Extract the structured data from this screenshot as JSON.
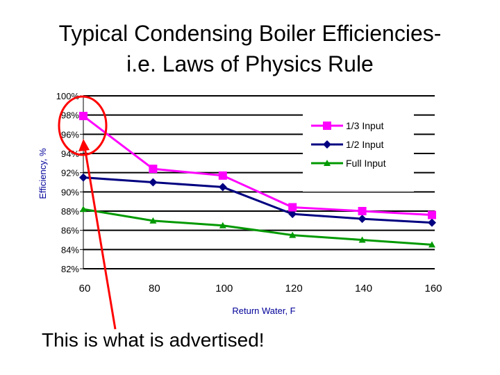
{
  "slide": {
    "title_line1": "Typical Condensing Boiler Efficiencies-",
    "title_line2": "i.e. Laws of Physics Rule",
    "callout": "This is what is advertised!"
  },
  "chart_data": {
    "type": "line",
    "xlabel": "Return Water, F",
    "ylabel": "Efficiency, %",
    "x": [
      60,
      80,
      100,
      120,
      140,
      160
    ],
    "x_tick_labels": [
      "60",
      "80",
      "100",
      "120",
      "140",
      "160"
    ],
    "y_tick_labels": [
      "100%",
      "98%",
      "96%",
      "94%",
      "92%",
      "90%",
      "88%",
      "86%",
      "84%",
      "82%"
    ],
    "ylim": [
      82,
      100
    ],
    "grid": true,
    "legend_position": "top-right",
    "series": [
      {
        "name": "1/3 Input",
        "marker": "square",
        "color": "#ff00ff",
        "values": [
          97.9,
          92.4,
          91.7,
          88.4,
          88.0,
          87.6
        ]
      },
      {
        "name": "1/2 Input",
        "marker": "diamond",
        "color": "#000080",
        "values": [
          91.5,
          91.0,
          90.5,
          87.7,
          87.2,
          86.8
        ]
      },
      {
        "name": "Full Input",
        "marker": "triangle",
        "color": "#009900",
        "values": [
          88.2,
          87.0,
          86.5,
          85.5,
          85.0,
          84.5
        ]
      }
    ],
    "annotation": {
      "text": "This is what is advertised!",
      "target_series": "1/3 Input",
      "target_x": 60,
      "circle_color": "#ff0000",
      "arrow_color": "#ff0000"
    }
  },
  "colors": {
    "axis_title": "#000099",
    "gridline": "#000000",
    "annotation": "#ff0000"
  }
}
